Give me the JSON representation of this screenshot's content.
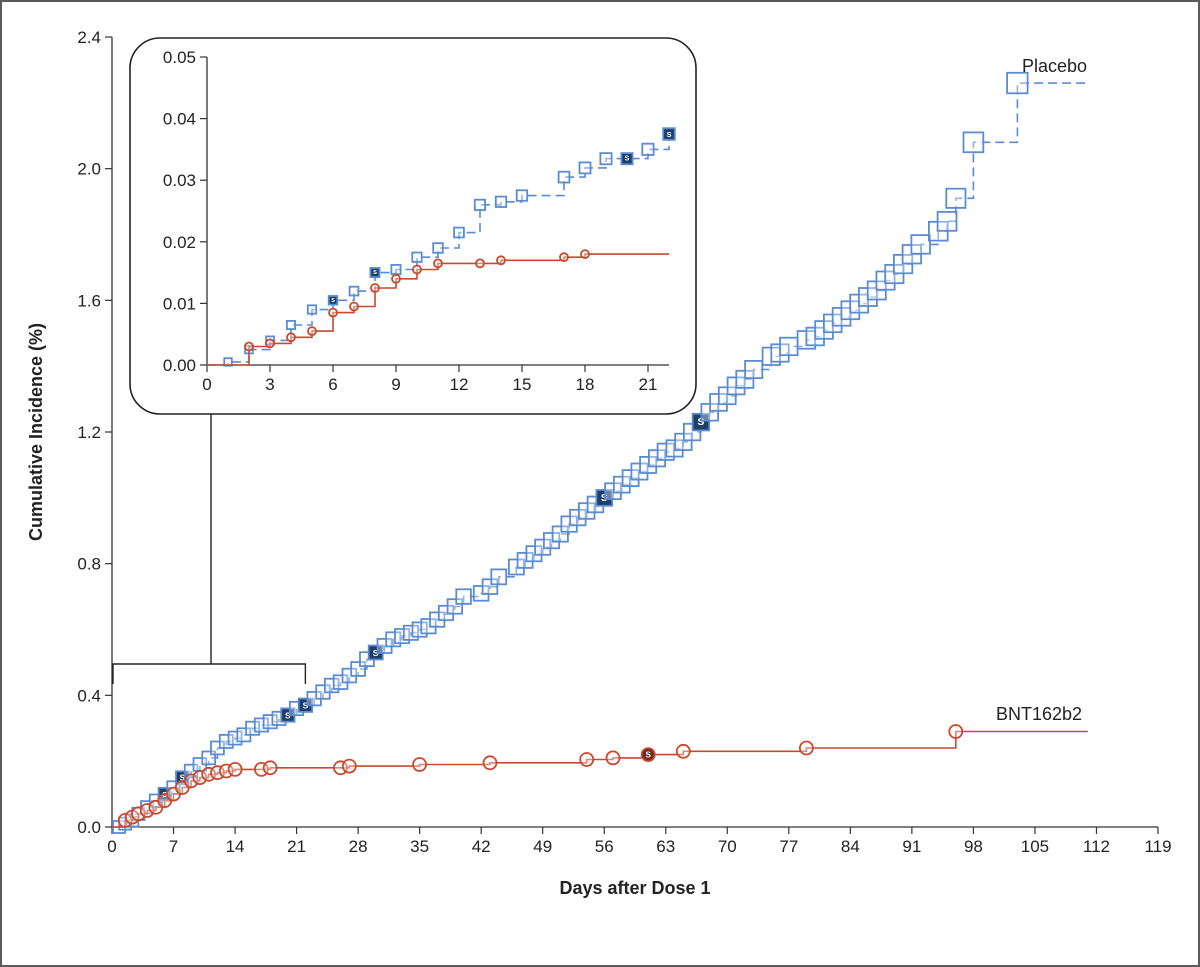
{
  "chart_data": {
    "type": "line",
    "title": "",
    "xlabel": "Days after Dose 1",
    "ylabel": "Cumulative Incidence (%)",
    "xlim": [
      0,
      119
    ],
    "ylim": [
      0,
      2.4
    ],
    "xticks": [
      0,
      7,
      14,
      21,
      28,
      35,
      42,
      49,
      56,
      63,
      70,
      77,
      84,
      91,
      98,
      105,
      112,
      119
    ],
    "xtick_labels": [
      "0",
      "7",
      "14",
      "21",
      "28",
      "35",
      "42",
      "49",
      "56",
      "63",
      "70",
      "77",
      "84",
      "91",
      "98",
      "105",
      "112",
      "119"
    ],
    "yticks": [
      0,
      0.4,
      0.8,
      1.2,
      1.6,
      2.0,
      2.4
    ],
    "ytick_labels": [
      "0.0",
      "0.4",
      "0.8",
      "1.2",
      "1.6",
      "2.0",
      "2.4"
    ],
    "marker_label": "S",
    "series": [
      {
        "name": "Placebo",
        "color": "#5b8bd0",
        "marker": "square",
        "end_x": 111,
        "points": [
          [
            0.8,
            0
          ],
          [
            1.5,
            0.01
          ],
          [
            2.3,
            0.02
          ],
          [
            3,
            0.04
          ],
          [
            4,
            0.06
          ],
          [
            5,
            0.08
          ],
          [
            6,
            0.1
          ],
          [
            7,
            0.12
          ],
          [
            8,
            0.15
          ],
          [
            9,
            0.17
          ],
          [
            10,
            0.19
          ],
          [
            11,
            0.21
          ],
          [
            12,
            0.24
          ],
          [
            13,
            0.26
          ],
          [
            14,
            0.27
          ],
          [
            15,
            0.28
          ],
          [
            16,
            0.3
          ],
          [
            17,
            0.31
          ],
          [
            18,
            0.32
          ],
          [
            19,
            0.33
          ],
          [
            20,
            0.34
          ],
          [
            21,
            0.36
          ],
          [
            22,
            0.37
          ],
          [
            23,
            0.39
          ],
          [
            24,
            0.41
          ],
          [
            25,
            0.43
          ],
          [
            26,
            0.44
          ],
          [
            27,
            0.46
          ],
          [
            28,
            0.48
          ],
          [
            29,
            0.51
          ],
          [
            30,
            0.53
          ],
          [
            31,
            0.55
          ],
          [
            32,
            0.57
          ],
          [
            33,
            0.58
          ],
          [
            34,
            0.59
          ],
          [
            35,
            0.6
          ],
          [
            36,
            0.61
          ],
          [
            37,
            0.63
          ],
          [
            38,
            0.65
          ],
          [
            39,
            0.67
          ],
          [
            40,
            0.7
          ],
          [
            42,
            0.71
          ],
          [
            43,
            0.73
          ],
          [
            44,
            0.76
          ],
          [
            46,
            0.79
          ],
          [
            47,
            0.81
          ],
          [
            48,
            0.83
          ],
          [
            49,
            0.85
          ],
          [
            50,
            0.87
          ],
          [
            51,
            0.89
          ],
          [
            52,
            0.92
          ],
          [
            53,
            0.94
          ],
          [
            54,
            0.96
          ],
          [
            55,
            0.98
          ],
          [
            56,
            1.0
          ],
          [
            57,
            1.02
          ],
          [
            58,
            1.04
          ],
          [
            59,
            1.06
          ],
          [
            60,
            1.08
          ],
          [
            61,
            1.1
          ],
          [
            62,
            1.12
          ],
          [
            63,
            1.14
          ],
          [
            64,
            1.15
          ],
          [
            65,
            1.17
          ],
          [
            66,
            1.2
          ],
          [
            67,
            1.23
          ],
          [
            68,
            1.26
          ],
          [
            69,
            1.29
          ],
          [
            70,
            1.31
          ],
          [
            71,
            1.34
          ],
          [
            72,
            1.36
          ],
          [
            73,
            1.39
          ],
          [
            75,
            1.43
          ],
          [
            76,
            1.44
          ],
          [
            77,
            1.46
          ],
          [
            79,
            1.48
          ],
          [
            80,
            1.49
          ],
          [
            81,
            1.51
          ],
          [
            82,
            1.53
          ],
          [
            83,
            1.55
          ],
          [
            84,
            1.57
          ],
          [
            85,
            1.59
          ],
          [
            86,
            1.61
          ],
          [
            87,
            1.63
          ],
          [
            88,
            1.66
          ],
          [
            89,
            1.68
          ],
          [
            90,
            1.71
          ],
          [
            91,
            1.74
          ],
          [
            92,
            1.77
          ],
          [
            94,
            1.81
          ],
          [
            95,
            1.84
          ],
          [
            96,
            1.91
          ],
          [
            98,
            2.08
          ],
          [
            103,
            2.26
          ]
        ],
        "highlighted_x": [
          6,
          8,
          20,
          22,
          30,
          56,
          67
        ]
      },
      {
        "name": "BNT162b2",
        "color": "#c8492e",
        "marker": "circle",
        "end_x": 111,
        "points": [
          [
            1.5,
            0.02
          ],
          [
            2.3,
            0.03
          ],
          [
            3,
            0.04
          ],
          [
            4,
            0.05
          ],
          [
            5,
            0.06
          ],
          [
            6,
            0.08
          ],
          [
            7,
            0.1
          ],
          [
            8,
            0.12
          ],
          [
            9,
            0.14
          ],
          [
            10,
            0.15
          ],
          [
            11,
            0.16
          ],
          [
            12,
            0.165
          ],
          [
            13,
            0.17
          ],
          [
            14,
            0.175
          ],
          [
            17,
            0.175
          ],
          [
            18,
            0.18
          ],
          [
            26,
            0.18
          ],
          [
            27,
            0.185
          ],
          [
            35,
            0.19
          ],
          [
            43,
            0.195
          ],
          [
            54,
            0.205
          ],
          [
            57,
            0.21
          ],
          [
            61,
            0.22
          ],
          [
            65,
            0.23
          ],
          [
            79,
            0.24
          ],
          [
            96,
            0.29
          ]
        ],
        "highlighted_x": [
          61
        ]
      }
    ],
    "inset": {
      "xlim": [
        0,
        22
      ],
      "ylim": [
        0,
        0.05
      ],
      "xticks": [
        0,
        3,
        6,
        9,
        12,
        15,
        18,
        21
      ],
      "xtick_labels": [
        "0",
        "3",
        "6",
        "9",
        "12",
        "15",
        "18",
        "21"
      ],
      "yticks": [
        0,
        0.01,
        0.02,
        0.03,
        0.04,
        0.05
      ],
      "ytick_labels": [
        "0.00",
        "0.01",
        "0.02",
        "0.03",
        "0.04",
        "0.05"
      ],
      "zoom_range_x": [
        0,
        22
      ],
      "series": [
        {
          "name": "Placebo",
          "color": "#5b8bd0",
          "marker": "square",
          "end_x": 22,
          "points": [
            [
              1,
              0.0005
            ],
            [
              2,
              0.0025
            ],
            [
              3,
              0.004
            ],
            [
              4,
              0.0065
            ],
            [
              5,
              0.009
            ],
            [
              6,
              0.0105
            ],
            [
              7,
              0.012
            ],
            [
              8,
              0.015
            ],
            [
              9,
              0.0155
            ],
            [
              10,
              0.0175
            ],
            [
              11,
              0.019
            ],
            [
              12,
              0.0215
            ],
            [
              13,
              0.026
            ],
            [
              14,
              0.0265
            ],
            [
              15,
              0.0275
            ],
            [
              17,
              0.0305
            ],
            [
              18,
              0.032
            ],
            [
              19,
              0.0335
            ],
            [
              20,
              0.0335
            ],
            [
              21,
              0.035
            ],
            [
              22,
              0.0375
            ]
          ],
          "highlighted_x": [
            6,
            8,
            20,
            22
          ]
        },
        {
          "name": "BNT162b2",
          "color": "#c8492e",
          "marker": "circle",
          "end_x": 22,
          "points": [
            [
              2,
              0.003
            ],
            [
              3,
              0.0035
            ],
            [
              4,
              0.0045
            ],
            [
              5,
              0.0055
            ],
            [
              6,
              0.0085
            ],
            [
              7,
              0.0095
            ],
            [
              8,
              0.0125
            ],
            [
              9,
              0.014
            ],
            [
              10,
              0.0155
            ],
            [
              11,
              0.0165
            ],
            [
              13,
              0.0165
            ],
            [
              14,
              0.017
            ],
            [
              17,
              0.0175
            ],
            [
              18,
              0.018
            ]
          ],
          "highlighted_x": []
        }
      ]
    }
  }
}
